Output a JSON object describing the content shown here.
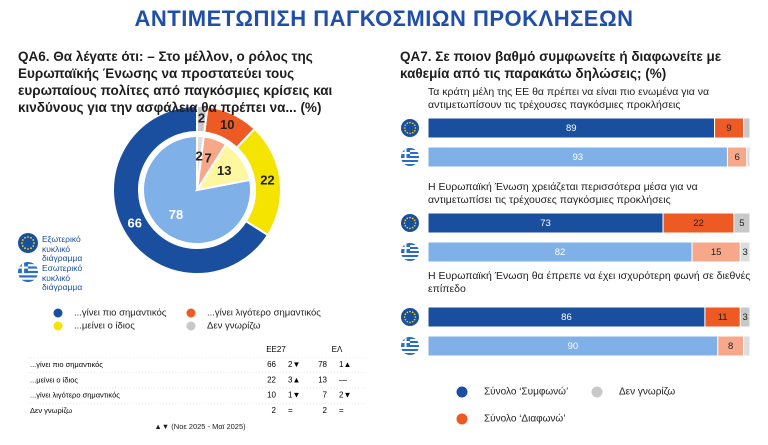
{
  "title": "ΑΝΤΙΜΕΤΩΠΙΣΗ ΠΑΓΚΟΣΜΙΩΝ ΠΡΟΚΛΗΣΕΩΝ",
  "left": {
    "question": "QA6. Θα λέγατε ότι: – Στο μέλλον, ο ρόλος της Ευρωπαϊκής Ένωσης να προστατεύει τους ευρωπαίους πολίτες από παγκόσμιες κρίσεις και κινδύνους για την ασφάλεια θα πρέπει να... (%)",
    "chart_data": {
      "type": "donut",
      "categories": [
        "...γίνει πιο σημαντικός",
        "...μείνει ο ίδιος",
        "...γίνει λιγότερο σημαντικός",
        "Δεν γνωρίζω"
      ],
      "colors": [
        "#1a4fa0",
        "#f5e400",
        "#ee5a24",
        "#c8c8c8"
      ],
      "inner_colors": [
        "#7fb0e8",
        "#fff6a0",
        "#f7a88a",
        "#dddddd"
      ],
      "outer": {
        "name": "Εξωτερικό κυκλικό διάγραμμα",
        "values": [
          66,
          22,
          10,
          2
        ]
      },
      "inner": {
        "name": "Εσωτερικό κυκλικό διάγραμμα",
        "values": [
          78,
          13,
          7,
          2
        ]
      }
    },
    "table": {
      "headers": [
        "ΕΕ27",
        "ΕΛ"
      ],
      "rows": [
        {
          "label": "...γίνει πιο σημαντικός",
          "eu": 66,
          "eu_change": "2▼",
          "gr": 78,
          "gr_change": "1▲"
        },
        {
          "label": "...μείνει ο ίδιος",
          "eu": 22,
          "eu_change": "3▲",
          "gr": 13,
          "gr_change": "—"
        },
        {
          "label": "...γίνει λιγότερο σημαντικός",
          "eu": 10,
          "eu_change": "1▼",
          "gr": 7,
          "gr_change": "2▼"
        },
        {
          "label": "Δεν γνωρίζω",
          "eu": 2,
          "eu_change": "=",
          "gr": 2,
          "gr_change": "="
        }
      ],
      "note": "▲▼ (Νοε 2025 - Μαϊ 2025)"
    }
  },
  "right": {
    "question": "QA7. Σε ποιον βαθμό συμφωνείτε ή διαφωνείτε με καθεμία από τις παρακάτω δηλώσεις; (%)",
    "chart_data": {
      "type": "stacked-bar",
      "legend": [
        "Σύνολο ‘Συμφωνώ’",
        "Σύνολο ‘Διαφωνώ’",
        "Δεν γνωρίζω"
      ],
      "colors": [
        "#1a4fa0",
        "#ee5a24",
        "#c8c8c8"
      ],
      "light_colors": [
        "#7fb0e8",
        "#f7a88a",
        "#dddddd"
      ],
      "statements": [
        {
          "text": "Τα κράτη μέλη της ΕΕ θα πρέπει να είναι πιο ενωμένα για να αντιμετωπίσουν τις τρέχουσες παγκόσμιες προκλήσεις",
          "eu": [
            89,
            9,
            2
          ],
          "gr": [
            93,
            6,
            1
          ]
        },
        {
          "text": "Η Ευρωπαϊκή Ένωση χρειάζεται περισσότερα μέσα για να αντιμετωπίσει τις τρέχουσες παγκόσμιες προκλήσεις",
          "eu": [
            73,
            22,
            5
          ],
          "gr": [
            82,
            15,
            3
          ]
        },
        {
          "text": "Η Ευρωπαϊκή Ένωση θα έπρεπε να έχει ισχυρότερη φωνή σε διεθνές επίπεδο",
          "eu": [
            86,
            11,
            3
          ],
          "gr": [
            90,
            8,
            2
          ]
        }
      ]
    }
  }
}
